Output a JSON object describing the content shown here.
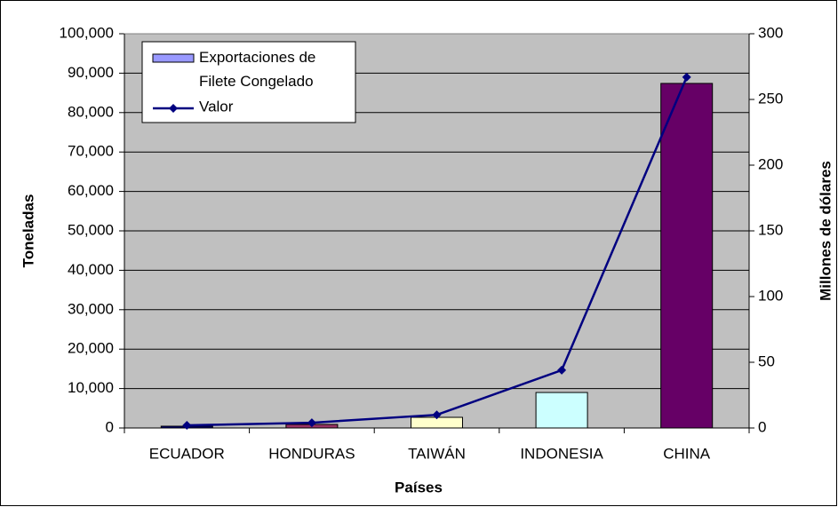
{
  "chart_data": {
    "type": "bar+line",
    "x_label": "Países",
    "y_label": "Toneladas",
    "y2_label": "Millones de dólares",
    "categories": [
      "ECUADOR",
      "HONDURAS",
      "TAIWÁN",
      "INDONESIA",
      "CHINA"
    ],
    "series": [
      {
        "name": "Exportaciones de Filete Congelado",
        "type": "bar",
        "color": "#9999ff",
        "colors": [
          "#000080",
          "#993366",
          "#ffffcc",
          "#ccffff",
          "#660066"
        ],
        "values": [
          450,
          900,
          2700,
          9000,
          87400
        ]
      },
      {
        "name": "Valor",
        "type": "line",
        "axis": "y2",
        "color": "#000080",
        "values": [
          2,
          4,
          10,
          44,
          267
        ]
      }
    ],
    "ylim": [
      0,
      100000
    ],
    "yticks": [
      0,
      {
        "value": 10000,
        "label": "10,000"
      },
      {
        "value": 20000,
        "label": "20,000"
      },
      {
        "value": 30000,
        "label": "30,000"
      },
      {
        "value": 40000,
        "label": "40,000"
      },
      {
        "value": 50000,
        "label": "50,000"
      },
      {
        "value": 60000,
        "label": "60,000"
      },
      {
        "value": 70000,
        "label": "70,000"
      },
      {
        "value": 80000,
        "label": "80,000"
      },
      {
        "value": 90000,
        "label": "90,000"
      },
      {
        "value": 100000,
        "label": "100,000"
      }
    ],
    "y2lim": [
      0,
      300
    ],
    "y2ticks": [
      0,
      50,
      100,
      150,
      200,
      250,
      300
    ],
    "grid": true,
    "plot_background": "#c0c0c0",
    "legend": "upper left"
  }
}
